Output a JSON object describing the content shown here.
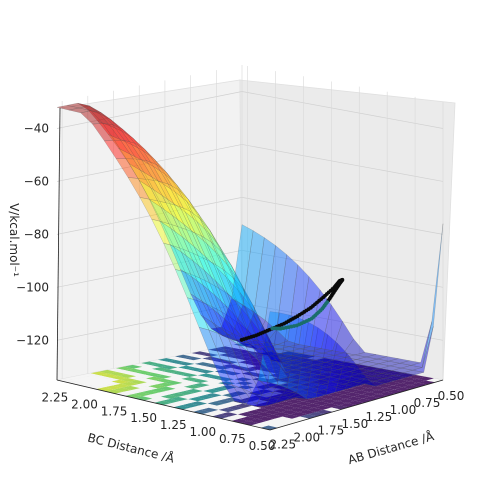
{
  "chart_data": {
    "type": "surface3d",
    "title": "",
    "xlabel": "AB Distance /Å",
    "ylabel": "BC Distance /Å",
    "zlabel": "V/kcal.mol⁻¹",
    "x_ticks": [
      "0.50",
      "0.75",
      "1.00",
      "1.25",
      "1.50",
      "1.75",
      "2.00",
      "2.25"
    ],
    "y_ticks": [
      "0.50",
      "0.75",
      "1.00",
      "1.25",
      "1.50",
      "1.75",
      "2.00",
      "2.25"
    ],
    "z_ticks": [
      "−40",
      "−60",
      "−80",
      "−100",
      "−120"
    ],
    "xlim": [
      0.5,
      2.3
    ],
    "ylim": [
      0.5,
      2.3
    ],
    "zlim": [
      -135,
      -30
    ],
    "surface_colormap": "jet",
    "contour_colormap": "viridis",
    "trajectory": {
      "color": "#0a0a0a",
      "color_end": "#1a6e6a",
      "points": [
        [
          2.3,
          0.74,
          -103.5
        ],
        [
          2.15,
          0.74,
          -103.3
        ],
        [
          2.0,
          0.75,
          -102.8
        ],
        [
          1.85,
          0.75,
          -102.0
        ],
        [
          1.7,
          0.76,
          -100.8
        ],
        [
          1.55,
          0.77,
          -99.2
        ],
        [
          1.4,
          0.79,
          -97.0
        ],
        [
          1.25,
          0.82,
          -95.0
        ],
        [
          1.15,
          0.86,
          -94.0
        ],
        [
          1.05,
          0.92,
          -95.0
        ],
        [
          0.98,
          1.0,
          -97.5
        ],
        [
          0.93,
          1.08,
          -101.0
        ],
        [
          0.88,
          1.18,
          -106.0
        ],
        [
          0.84,
          1.28,
          -111.0
        ],
        [
          0.81,
          1.4,
          -116.0
        ],
        [
          0.79,
          1.55,
          -120.0
        ],
        [
          0.78,
          1.7,
          -122.5
        ],
        [
          0.77,
          1.8,
          -123.2
        ]
      ]
    }
  }
}
